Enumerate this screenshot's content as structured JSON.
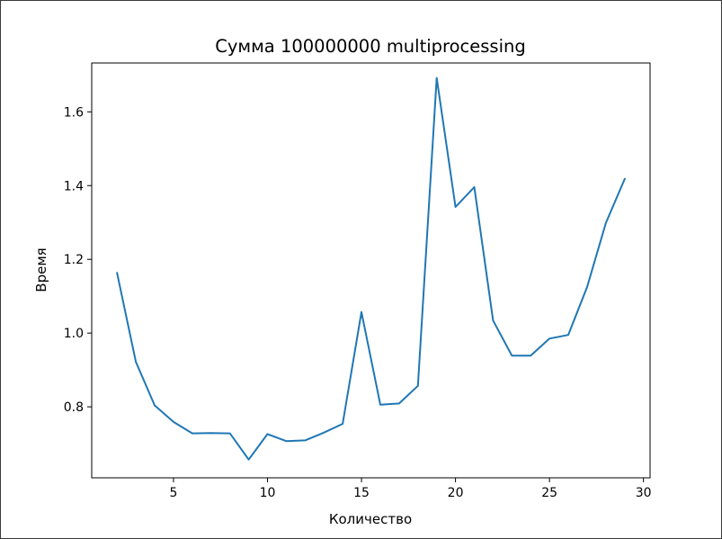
{
  "chart_data": {
    "type": "line",
    "title": "Сумма 100000000 multiprocessing",
    "xlabel": "Количество",
    "ylabel": "Время",
    "xlim": [
      0.65,
      30.35
    ],
    "ylim": [
      0.6075,
      1.7325
    ],
    "xticks": [
      5,
      10,
      15,
      20,
      25,
      30
    ],
    "xtick_labels": [
      "5",
      "10",
      "15",
      "20",
      "25",
      "30"
    ],
    "yticks": [
      0.8,
      1.0,
      1.2,
      1.4,
      1.6
    ],
    "ytick_labels": [
      "0.8",
      "1.0",
      "1.2",
      "1.4",
      "1.6"
    ],
    "grid": false,
    "series": [
      {
        "color": "#1f77b4",
        "x": [
          2,
          3,
          4,
          5,
          6,
          7,
          8,
          9,
          10,
          11,
          12,
          13,
          14,
          15,
          16,
          17,
          18,
          19,
          20,
          21,
          22,
          23,
          24,
          25,
          26,
          27,
          28,
          29
        ],
        "values": [
          1.163,
          0.922,
          0.804,
          0.759,
          0.728,
          0.729,
          0.728,
          0.657,
          0.726,
          0.707,
          0.709,
          0.73,
          0.754,
          1.057,
          0.806,
          0.809,
          0.857,
          1.692,
          1.342,
          1.396,
          1.034,
          0.939,
          0.939,
          0.985,
          0.995,
          1.125,
          1.299,
          1.418
        ]
      }
    ]
  }
}
